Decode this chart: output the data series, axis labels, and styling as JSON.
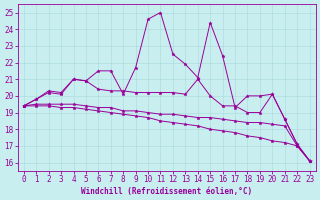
{
  "title": "",
  "xlabel": "Windchill (Refroidissement éolien,°C)",
  "ylabel": "",
  "bg_color": "#c8eef0",
  "line_color": "#990099",
  "grid_color": "#b0dde0",
  "xlim": [
    -0.5,
    23.5
  ],
  "ylim": [
    15.5,
    25.5
  ],
  "xticks": [
    0,
    1,
    2,
    3,
    4,
    5,
    6,
    7,
    8,
    9,
    10,
    11,
    12,
    13,
    14,
    15,
    16,
    17,
    18,
    19,
    20,
    21,
    22,
    23
  ],
  "yticks": [
    16,
    17,
    18,
    19,
    20,
    21,
    22,
    23,
    24,
    25
  ],
  "line1_x": [
    0,
    1,
    2,
    3,
    4,
    5,
    6,
    7,
    8,
    9,
    10,
    11,
    12,
    13,
    14,
    15,
    16,
    17,
    18,
    19,
    20,
    21,
    22,
    23
  ],
  "line1_y": [
    19.4,
    19.8,
    20.3,
    20.2,
    21.0,
    20.9,
    20.4,
    20.3,
    20.3,
    20.2,
    20.2,
    20.2,
    20.2,
    20.1,
    21.0,
    20.0,
    19.4,
    19.4,
    19.0,
    19.0,
    20.1,
    18.6,
    17.1,
    16.1
  ],
  "line2_x": [
    0,
    1,
    2,
    3,
    4,
    5,
    6,
    7,
    8,
    9,
    10,
    11,
    12,
    13,
    14,
    15,
    16,
    17,
    18,
    19,
    20,
    21,
    22,
    23
  ],
  "line2_y": [
    19.4,
    19.8,
    20.2,
    20.1,
    21.0,
    20.9,
    21.5,
    21.5,
    20.1,
    21.7,
    24.6,
    25.0,
    22.5,
    21.9,
    21.1,
    24.4,
    22.4,
    19.3,
    20.0,
    20.0,
    20.1,
    18.6,
    17.1,
    16.1
  ],
  "line3_x": [
    0,
    1,
    2,
    3,
    4,
    5,
    6,
    7,
    8,
    9,
    10,
    11,
    12,
    13,
    14,
    15,
    16,
    17,
    18,
    19,
    20,
    21,
    22,
    23
  ],
  "line3_y": [
    19.4,
    19.5,
    19.5,
    19.5,
    19.5,
    19.4,
    19.3,
    19.3,
    19.1,
    19.1,
    19.0,
    18.9,
    18.9,
    18.8,
    18.7,
    18.7,
    18.6,
    18.5,
    18.4,
    18.4,
    18.3,
    18.2,
    17.0,
    16.1
  ],
  "line4_x": [
    0,
    1,
    2,
    3,
    4,
    5,
    6,
    7,
    8,
    9,
    10,
    11,
    12,
    13,
    14,
    15,
    16,
    17,
    18,
    19,
    20,
    21,
    22,
    23
  ],
  "line4_y": [
    19.4,
    19.4,
    19.4,
    19.3,
    19.3,
    19.2,
    19.1,
    19.0,
    18.9,
    18.8,
    18.7,
    18.5,
    18.4,
    18.3,
    18.2,
    18.0,
    17.9,
    17.8,
    17.6,
    17.5,
    17.3,
    17.2,
    17.0,
    16.1
  ],
  "figsize": [
    3.2,
    2.0
  ],
  "dpi": 100,
  "tick_fontsize": 5.5,
  "xlabel_fontsize": 5.5,
  "linewidth": 0.7,
  "markersize": 2.5
}
